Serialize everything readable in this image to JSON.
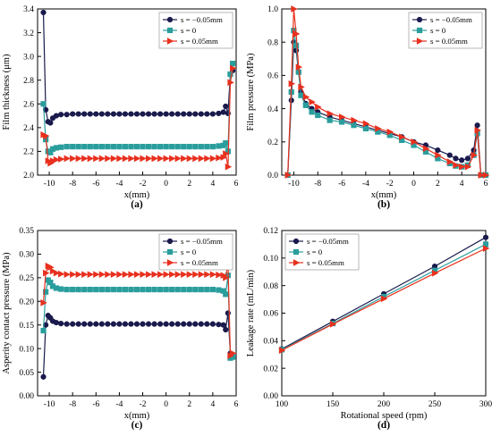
{
  "panels": [
    {
      "id": "a",
      "caption": "(a)",
      "ylabel": "Film thickness (μm)",
      "xlabel": "x(mm)",
      "xlim": [
        -11,
        6
      ],
      "ylim": [
        2.0,
        3.4
      ],
      "xticks": [
        -10,
        -8,
        -6,
        -4,
        -2,
        0,
        2,
        4,
        6
      ],
      "yticks": [
        2.0,
        2.2,
        2.4,
        2.6,
        2.8,
        3.0,
        3.2,
        3.4
      ],
      "tick_decimals": 1,
      "legend": "top-right",
      "series": [
        {
          "name": "s = −0.05mm",
          "color": "#1a1a4d",
          "marker": "circle",
          "x": [
            -10.5,
            -10.3,
            -10.1,
            -9.9,
            -9.7,
            -9.4,
            -9.0,
            -8.5,
            -8.0,
            -7.5,
            -7.0,
            -6.5,
            -6.0,
            -5.5,
            -5.0,
            -4.5,
            -4.0,
            -3.5,
            -3.0,
            -2.5,
            -2.0,
            -1.5,
            -1.0,
            -0.5,
            0.0,
            0.5,
            1.0,
            1.5,
            2.0,
            2.5,
            3.0,
            3.5,
            4.0,
            4.5,
            4.9,
            5.1,
            5.3,
            5.5,
            5.7
          ],
          "y": [
            3.37,
            2.55,
            2.45,
            2.44,
            2.48,
            2.5,
            2.51,
            2.51,
            2.515,
            2.515,
            2.515,
            2.515,
            2.515,
            2.515,
            2.515,
            2.515,
            2.515,
            2.515,
            2.515,
            2.515,
            2.515,
            2.515,
            2.515,
            2.515,
            2.515,
            2.515,
            2.515,
            2.515,
            2.515,
            2.515,
            2.515,
            2.515,
            2.515,
            2.52,
            2.53,
            2.58,
            2.52,
            2.85,
            2.88
          ]
        },
        {
          "name": "s = 0",
          "color": "#2a9d9d",
          "marker": "square",
          "x": [
            -10.5,
            -10.3,
            -10.1,
            -9.9,
            -9.7,
            -9.4,
            -9.0,
            -8.5,
            -8.0,
            -7.5,
            -7.0,
            -6.5,
            -6.0,
            -5.5,
            -5.0,
            -4.5,
            -4.0,
            -3.5,
            -3.0,
            -2.5,
            -2.0,
            -1.5,
            -1.0,
            -0.5,
            0.0,
            0.5,
            1.0,
            1.5,
            2.0,
            2.5,
            3.0,
            3.5,
            4.0,
            4.5,
            4.9,
            5.1,
            5.3,
            5.5,
            5.7
          ],
          "y": [
            2.6,
            2.3,
            2.2,
            2.19,
            2.22,
            2.23,
            2.235,
            2.24,
            2.24,
            2.24,
            2.24,
            2.24,
            2.24,
            2.24,
            2.24,
            2.24,
            2.24,
            2.24,
            2.24,
            2.24,
            2.24,
            2.24,
            2.24,
            2.24,
            2.24,
            2.24,
            2.24,
            2.24,
            2.24,
            2.24,
            2.24,
            2.24,
            2.24,
            2.245,
            2.25,
            2.27,
            2.2,
            2.85,
            2.94
          ]
        },
        {
          "name": "s = 0.05mm",
          "color": "#e8301e",
          "marker": "triangle-right",
          "x": [
            -10.5,
            -10.3,
            -10.1,
            -9.9,
            -9.7,
            -9.4,
            -9.0,
            -8.5,
            -8.0,
            -7.5,
            -7.0,
            -6.5,
            -6.0,
            -5.5,
            -5.0,
            -4.5,
            -4.0,
            -3.5,
            -3.0,
            -2.5,
            -2.0,
            -1.5,
            -1.0,
            -0.5,
            0.0,
            0.5,
            1.0,
            1.5,
            2.0,
            2.5,
            3.0,
            3.5,
            4.0,
            4.5,
            4.9,
            5.1,
            5.3,
            5.5,
            5.7
          ],
          "y": [
            2.34,
            2.33,
            2.12,
            2.1,
            2.12,
            2.13,
            2.135,
            2.14,
            2.14,
            2.14,
            2.14,
            2.14,
            2.14,
            2.14,
            2.14,
            2.14,
            2.14,
            2.14,
            2.14,
            2.14,
            2.14,
            2.14,
            2.14,
            2.14,
            2.14,
            2.14,
            2.14,
            2.14,
            2.14,
            2.14,
            2.14,
            2.14,
            2.14,
            2.145,
            2.15,
            2.18,
            2.07,
            2.78,
            2.9
          ]
        }
      ]
    },
    {
      "id": "b",
      "caption": "(b)",
      "ylabel": "Film pressure (MPa)",
      "xlabel": "x(mm)",
      "xlim": [
        -11,
        6
      ],
      "ylim": [
        0.0,
        1.0
      ],
      "xticks": [
        -10,
        -8,
        -6,
        -4,
        -2,
        0,
        2,
        4,
        6
      ],
      "yticks": [
        0.0,
        0.2,
        0.4,
        0.6,
        0.8,
        1.0
      ],
      "tick_decimals": 1,
      "legend": "top-right",
      "series": [
        {
          "name": "s = −0.05mm",
          "color": "#1a1a4d",
          "marker": "circle",
          "x": [
            -10.5,
            -10.2,
            -10.0,
            -9.8,
            -9.6,
            -9.4,
            -9.0,
            -8.5,
            -8.0,
            -7.0,
            -6.0,
            -5.0,
            -4.0,
            -3.0,
            -2.0,
            -1.0,
            0.0,
            1.0,
            2.0,
            3.0,
            3.5,
            4.0,
            4.5,
            5.0,
            5.3,
            5.6,
            6.0
          ],
          "y": [
            0.0,
            0.45,
            0.8,
            0.75,
            0.62,
            0.5,
            0.43,
            0.4,
            0.38,
            0.35,
            0.33,
            0.31,
            0.29,
            0.27,
            0.25,
            0.23,
            0.2,
            0.18,
            0.15,
            0.12,
            0.1,
            0.09,
            0.1,
            0.15,
            0.3,
            0.0,
            0.0
          ]
        },
        {
          "name": "s = 0",
          "color": "#2a9d9d",
          "marker": "square",
          "x": [
            -10.5,
            -10.2,
            -10.0,
            -9.8,
            -9.6,
            -9.4,
            -9.0,
            -8.5,
            -8.0,
            -7.0,
            -6.0,
            -5.0,
            -4.0,
            -3.0,
            -2.0,
            -1.0,
            0.0,
            1.0,
            2.0,
            3.0,
            3.5,
            4.0,
            4.5,
            5.0,
            5.3,
            5.6,
            6.0
          ],
          "y": [
            0.0,
            0.5,
            0.87,
            0.78,
            0.62,
            0.48,
            0.42,
            0.38,
            0.36,
            0.33,
            0.32,
            0.3,
            0.28,
            0.26,
            0.24,
            0.21,
            0.18,
            0.14,
            0.1,
            0.07,
            0.055,
            0.05,
            0.06,
            0.12,
            0.25,
            0.0,
            0.0
          ]
        },
        {
          "name": "s = 0.05mm",
          "color": "#e8301e",
          "marker": "triangle-right",
          "x": [
            -10.5,
            -10.2,
            -10.0,
            -9.8,
            -9.6,
            -9.4,
            -9.0,
            -8.5,
            -8.0,
            -7.0,
            -6.0,
            -5.0,
            -4.0,
            -3.0,
            -2.0,
            -1.0,
            0.0,
            1.0,
            2.0,
            3.0,
            3.5,
            4.0,
            4.5,
            5.0,
            5.3,
            5.6,
            6.0
          ],
          "y": [
            0.0,
            0.55,
            1.0,
            0.85,
            0.65,
            0.53,
            0.47,
            0.44,
            0.41,
            0.37,
            0.35,
            0.33,
            0.31,
            0.28,
            0.26,
            0.23,
            0.2,
            0.16,
            0.12,
            0.08,
            0.06,
            0.05,
            0.05,
            0.12,
            0.27,
            0.0,
            0.0
          ]
        }
      ]
    },
    {
      "id": "c",
      "caption": "(c)",
      "ylabel": "Asperity contact pressure (MPa)",
      "xlabel": "x(mm)",
      "xlim": [
        -11,
        6
      ],
      "ylim": [
        0.0,
        0.35
      ],
      "xticks": [
        -10,
        -8,
        -6,
        -4,
        -2,
        0,
        2,
        4,
        6
      ],
      "yticks": [
        0.0,
        0.05,
        0.1,
        0.15,
        0.2,
        0.25,
        0.3,
        0.35
      ],
      "tick_decimals": 2,
      "legend": "top-right",
      "series": [
        {
          "name": "s = −0.05mm",
          "color": "#1a1a4d",
          "marker": "circle",
          "x": [
            -10.5,
            -10.3,
            -10.1,
            -9.9,
            -9.7,
            -9.4,
            -9.0,
            -8.5,
            -8.0,
            -7.5,
            -7.0,
            -6.5,
            -6.0,
            -5.5,
            -5.0,
            -4.5,
            -4.0,
            -3.5,
            -3.0,
            -2.5,
            -2.0,
            -1.5,
            -1.0,
            -0.5,
            0.0,
            0.5,
            1.0,
            1.5,
            2.0,
            2.5,
            3.0,
            3.5,
            4.0,
            4.5,
            4.9,
            5.1,
            5.3,
            5.5,
            5.7
          ],
          "y": [
            0.04,
            0.15,
            0.17,
            0.165,
            0.158,
            0.155,
            0.153,
            0.152,
            0.152,
            0.152,
            0.152,
            0.152,
            0.152,
            0.152,
            0.152,
            0.152,
            0.152,
            0.152,
            0.152,
            0.152,
            0.152,
            0.152,
            0.152,
            0.152,
            0.152,
            0.152,
            0.152,
            0.152,
            0.152,
            0.152,
            0.152,
            0.152,
            0.152,
            0.151,
            0.15,
            0.14,
            0.175,
            0.09,
            0.082
          ]
        },
        {
          "name": "s = 0",
          "color": "#2a9d9d",
          "marker": "square",
          "x": [
            -10.5,
            -10.3,
            -10.1,
            -9.9,
            -9.7,
            -9.4,
            -9.0,
            -8.5,
            -8.0,
            -7.5,
            -7.0,
            -6.5,
            -6.0,
            -5.5,
            -5.0,
            -4.5,
            -4.0,
            -3.5,
            -3.0,
            -2.5,
            -2.0,
            -1.5,
            -1.0,
            -0.5,
            0.0,
            0.5,
            1.0,
            1.5,
            2.0,
            2.5,
            3.0,
            3.5,
            4.0,
            4.5,
            4.9,
            5.1,
            5.3,
            5.5,
            5.7
          ],
          "y": [
            0.138,
            0.22,
            0.245,
            0.24,
            0.232,
            0.228,
            0.226,
            0.225,
            0.225,
            0.225,
            0.225,
            0.225,
            0.225,
            0.225,
            0.225,
            0.225,
            0.225,
            0.225,
            0.225,
            0.225,
            0.225,
            0.225,
            0.225,
            0.225,
            0.225,
            0.225,
            0.225,
            0.225,
            0.225,
            0.225,
            0.225,
            0.225,
            0.225,
            0.224,
            0.222,
            0.215,
            0.255,
            0.08,
            0.082
          ]
        },
        {
          "name": "s = 0.05mm",
          "color": "#e8301e",
          "marker": "triangle-right",
          "x": [
            -10.5,
            -10.3,
            -10.1,
            -9.9,
            -9.7,
            -9.4,
            -9.0,
            -8.5,
            -8.0,
            -7.5,
            -7.0,
            -6.5,
            -6.0,
            -5.5,
            -5.0,
            -4.5,
            -4.0,
            -3.5,
            -3.0,
            -2.5,
            -2.0,
            -1.5,
            -1.0,
            -0.5,
            0.0,
            0.5,
            1.0,
            1.5,
            2.0,
            2.5,
            3.0,
            3.5,
            4.0,
            4.5,
            4.9,
            5.1,
            5.3,
            5.5,
            5.7
          ],
          "y": [
            0.197,
            0.26,
            0.275,
            0.272,
            0.264,
            0.26,
            0.258,
            0.257,
            0.257,
            0.257,
            0.257,
            0.257,
            0.257,
            0.257,
            0.257,
            0.257,
            0.257,
            0.257,
            0.257,
            0.257,
            0.257,
            0.257,
            0.257,
            0.257,
            0.257,
            0.257,
            0.257,
            0.257,
            0.257,
            0.257,
            0.257,
            0.257,
            0.257,
            0.256,
            0.255,
            0.25,
            0.28,
            0.085,
            0.09
          ]
        }
      ]
    },
    {
      "id": "d",
      "caption": "(d)",
      "ylabel": "Leakage rate (mL/min)",
      "xlabel": "Rotational speed (rpm)",
      "xlim": [
        100,
        300
      ],
      "ylim": [
        0.0,
        0.12
      ],
      "xticks": [
        100,
        150,
        200,
        250,
        300
      ],
      "yticks": [
        0.0,
        0.02,
        0.04,
        0.06,
        0.08,
        0.1,
        0.12
      ],
      "tick_decimals": 2,
      "legend": "top-left",
      "series": [
        {
          "name": "s = −0.05mm",
          "color": "#1a1a4d",
          "marker": "circle",
          "x": [
            100,
            150,
            200,
            250,
            300
          ],
          "y": [
            0.034,
            0.054,
            0.074,
            0.094,
            0.115
          ]
        },
        {
          "name": "s = 0",
          "color": "#2a9d9d",
          "marker": "square",
          "x": [
            100,
            150,
            200,
            250,
            300
          ],
          "y": [
            0.0335,
            0.0525,
            0.072,
            0.091,
            0.11
          ]
        },
        {
          "name": "s = 0.05mm",
          "color": "#e8301e",
          "marker": "triangle-right",
          "x": [
            100,
            150,
            200,
            250,
            300
          ],
          "y": [
            0.033,
            0.052,
            0.0705,
            0.089,
            0.107
          ]
        }
      ]
    }
  ],
  "chart_data": [
    {
      "type": "line",
      "xlabel": "x(mm)",
      "ylabel": "Film thickness (μm)",
      "xlim": [
        -11,
        6
      ],
      "ylim": [
        2.0,
        3.4
      ],
      "legend": "top-right",
      "series_names": [
        "s = −0.05mm",
        "s = 0",
        "s = 0.05mm"
      ]
    },
    {
      "type": "line",
      "xlabel": "x(mm)",
      "ylabel": "Film pressure (MPa)",
      "xlim": [
        -11,
        6
      ],
      "ylim": [
        0.0,
        1.0
      ],
      "legend": "top-right",
      "series_names": [
        "s = −0.05mm",
        "s = 0",
        "s = 0.05mm"
      ]
    },
    {
      "type": "line",
      "xlabel": "x(mm)",
      "ylabel": "Asperity contact pressure (MPa)",
      "xlim": [
        -11,
        6
      ],
      "ylim": [
        0.0,
        0.35
      ],
      "legend": "top-right",
      "series_names": [
        "s = −0.05mm",
        "s = 0",
        "s = 0.05mm"
      ]
    },
    {
      "type": "line",
      "xlabel": "Rotational speed (rpm)",
      "ylabel": "Leakage rate (mL/min)",
      "xlim": [
        100,
        300
      ],
      "ylim": [
        0.0,
        0.12
      ],
      "legend": "top-left",
      "series_names": [
        "s = −0.05mm",
        "s = 0",
        "s = 0.05mm"
      ]
    }
  ]
}
